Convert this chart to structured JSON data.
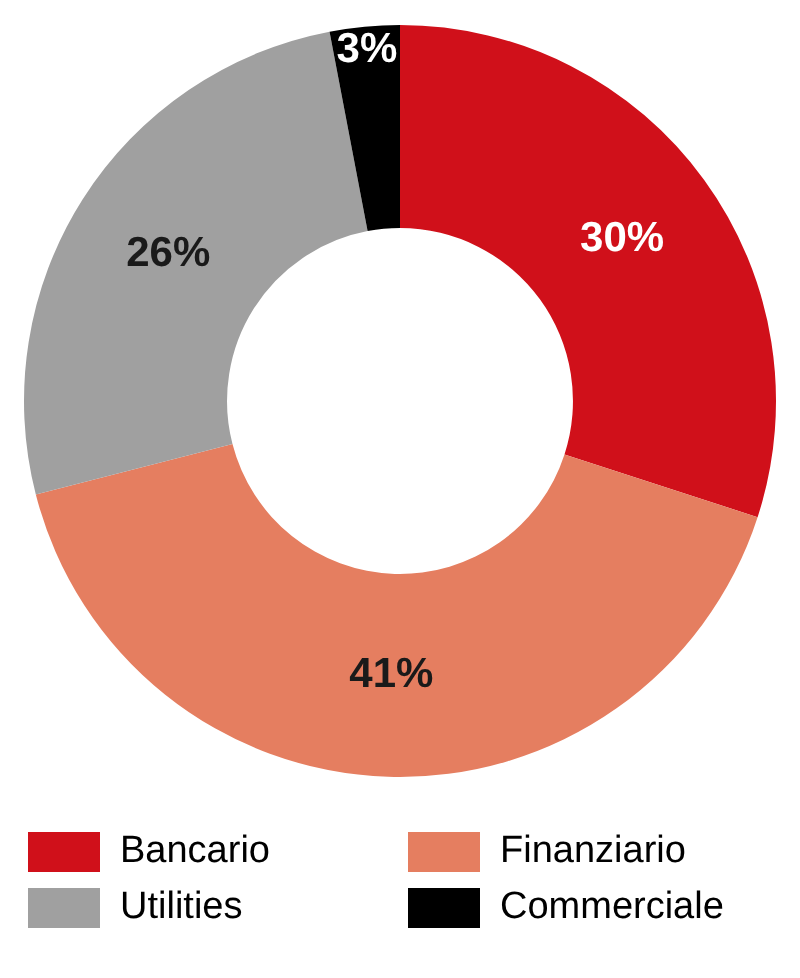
{
  "chart_data": {
    "type": "donut",
    "categories": [
      "Bancario",
      "Finanziario",
      "Utilities",
      "Commerciale"
    ],
    "values": [
      30,
      41,
      26,
      3
    ],
    "colors": [
      "#d0101a",
      "#e57e60",
      "#a0a0a0",
      "#000000"
    ],
    "value_labels": [
      "30%",
      "41%",
      "26%",
      "3%"
    ],
    "legend": "bottom"
  }
}
